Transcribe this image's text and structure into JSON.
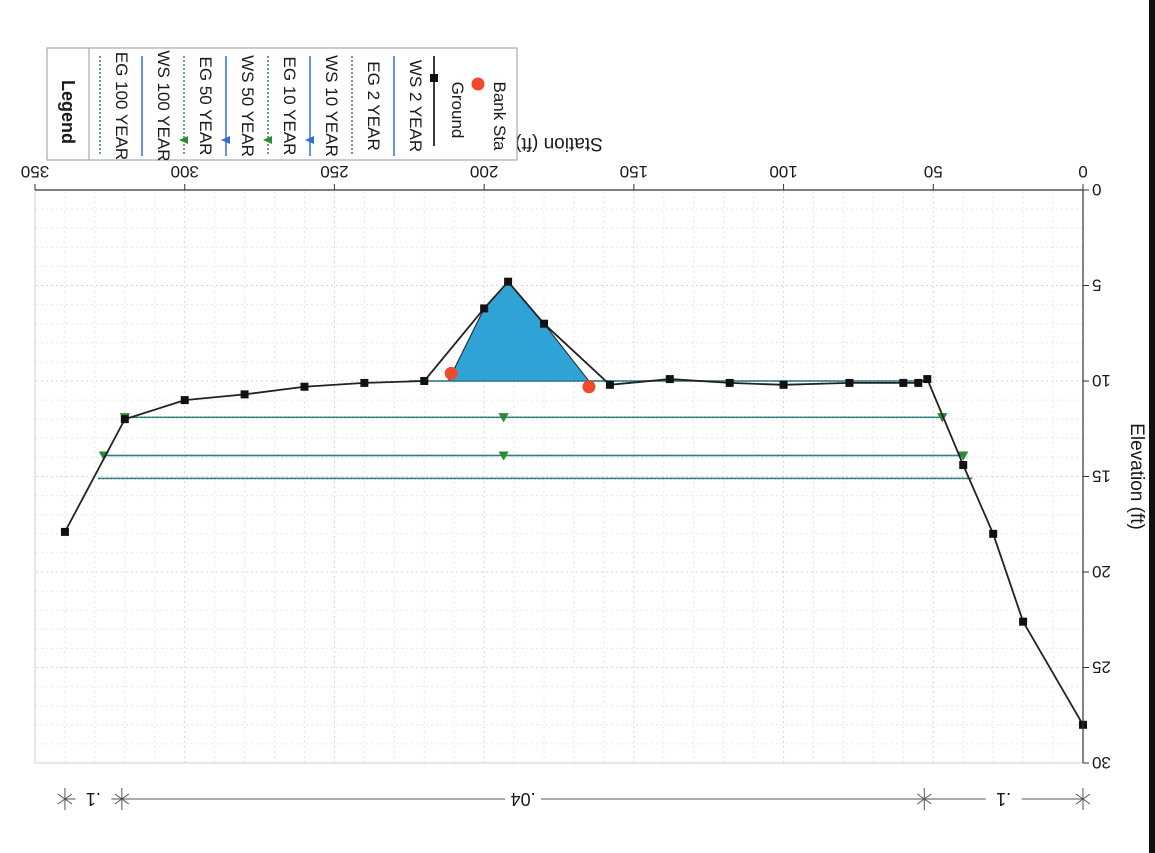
{
  "chart_data": {
    "type": "line",
    "xlabel": "Station (ft)",
    "ylabel": "Elevation (ft)",
    "xlim": [
      0,
      350
    ],
    "ylim": [
      0,
      30
    ],
    "xticks": [
      "0",
      "50",
      "100",
      "150",
      "200",
      "250",
      "300",
      "350"
    ],
    "yticks": [
      "0",
      "5",
      "10",
      "15",
      "20",
      "25",
      "30"
    ],
    "grid": true,
    "legend_position": "top-right",
    "legend": {
      "title": "Legend",
      "entries": [
        {
          "label": "EG 100 YEAR",
          "style": "dotted",
          "color": "#2e8b2e",
          "marker": "none"
        },
        {
          "label": "WS 100 YEAR",
          "style": "solid",
          "color": "#2f6fd6",
          "marker": "none"
        },
        {
          "label": "EG 50 YEAR",
          "style": "dotted",
          "color": "#2e8b2e",
          "marker": "triangle"
        },
        {
          "label": "WS 50 YEAR",
          "style": "solid",
          "color": "#2f6fd6",
          "marker": "triangle"
        },
        {
          "label": "EG 10 YEAR",
          "style": "dotted",
          "color": "#2e8b2e",
          "marker": "triangle"
        },
        {
          "label": "WS 10 YEAR",
          "style": "solid",
          "color": "#2f6fd6",
          "marker": "triangle"
        },
        {
          "label": "EG 2 YEAR",
          "style": "dotted",
          "color": "#2e8b2e",
          "marker": "none"
        },
        {
          "label": "WS 2 YEAR",
          "style": "solid",
          "color": "#2f6fd6",
          "marker": "none"
        },
        {
          "label": "Ground",
          "style": "solid",
          "color": "#222222",
          "marker": "square"
        },
        {
          "label": "Bank Sta",
          "style": "none",
          "color": "#f04a2a",
          "marker": "circle"
        }
      ]
    },
    "series": [
      {
        "name": "Ground",
        "x": [
          0,
          20,
          30,
          40,
          52,
          55,
          60,
          78,
          100,
          118,
          138,
          158,
          180,
          192,
          200,
          220,
          240,
          260,
          280,
          300,
          320,
          340
        ],
        "y": [
          28.0,
          22.6,
          18.0,
          14.4,
          9.9,
          10.1,
          10.1,
          10.1,
          10.2,
          10.1,
          9.9,
          10.2,
          7.0,
          4.8,
          6.2,
          10.0,
          10.1,
          10.3,
          10.7,
          11.0,
          12.0,
          17.9
        ]
      },
      {
        "name": "WS 100 YEAR",
        "elevation": 15.1,
        "x_range": [
          37,
          329
        ]
      },
      {
        "name": "EG 100 YEAR",
        "elevation": 15.1,
        "x_range": [
          37,
          329
        ]
      },
      {
        "name": "WS 50 YEAR",
        "elevation": 13.9,
        "x_range": [
          40,
          327
        ]
      },
      {
        "name": "EG 50 YEAR",
        "elevation": 13.9,
        "x_range": [
          40,
          327
        ]
      },
      {
        "name": "WS 10 YEAR",
        "elevation": 11.9,
        "x_range": [
          47,
          320
        ]
      },
      {
        "name": "EG 10 YEAR",
        "elevation": 11.9,
        "x_range": [
          47,
          320
        ]
      },
      {
        "name": "WS 2 YEAR",
        "elevation": 10.0,
        "x_range": [
          52,
          225
        ]
      },
      {
        "name": "EG 2 YEAR",
        "elevation": 10.0,
        "x_range": [
          52,
          225
        ]
      }
    ],
    "flow_areas": [
      {
        "elevation": 10.0,
        "x": [
          165,
          180,
          192,
          200,
          212
        ]
      },
      {
        "elevation": 10.0,
        "x": [
          128,
          138,
          145
        ]
      }
    ],
    "bank_stations": [
      {
        "x": 165,
        "y": 10.3
      },
      {
        "x": 211,
        "y": 9.6
      }
    ],
    "manning_n": [
      {
        "label": ".1",
        "from": 0,
        "to": 53
      },
      {
        "label": ".04",
        "from": 53,
        "to": 321
      },
      {
        "label": ".1",
        "from": 321,
        "to": 340
      }
    ]
  }
}
